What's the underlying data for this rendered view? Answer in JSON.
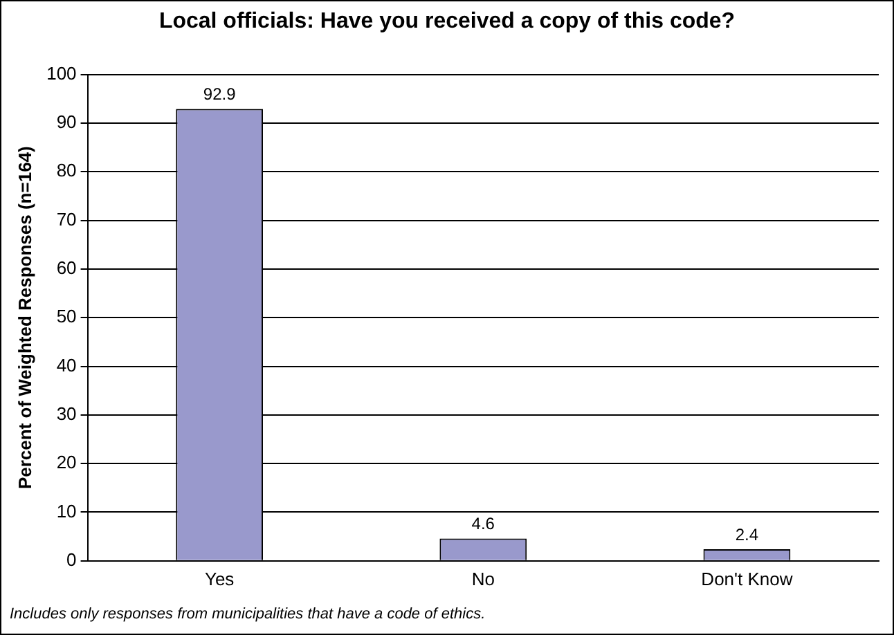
{
  "chart_data": {
    "type": "bar",
    "title": "Local officials: Have you received a copy of this code?",
    "ylabel": "Percent of Weighted Responses (n=164)",
    "categories": [
      "Yes",
      "No",
      "Don't Know"
    ],
    "values": [
      92.9,
      4.6,
      2.4
    ],
    "color": "#9999cc",
    "ylim": [
      0,
      100
    ],
    "yticks": [
      0,
      10,
      20,
      30,
      40,
      50,
      60,
      70,
      80,
      90,
      100
    ],
    "grid": "y",
    "data_labels": true,
    "legend": false,
    "annotations": [
      "Includes only responses from municipalities that have a code of ethics."
    ]
  }
}
